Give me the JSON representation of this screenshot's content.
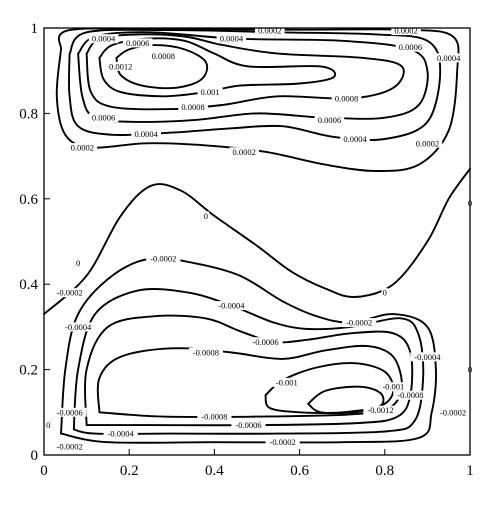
{
  "chart_data": {
    "type": "contour",
    "title": "",
    "xlabel": "",
    "ylabel": "",
    "xlim": [
      0,
      1
    ],
    "ylim": [
      0,
      1
    ],
    "grid": false,
    "x_ticks": [
      "0",
      "0.2",
      "0.4",
      "0.6",
      "0.8",
      "1"
    ],
    "y_ticks": [
      "0",
      "0.2",
      "0.4",
      "0.6",
      "0.8",
      "1"
    ],
    "line_color": "#000000",
    "contours": [
      {
        "level": "0.0012",
        "points": [
          [
            0.17,
            0.93
          ],
          [
            0.2,
            0.95
          ],
          [
            0.26,
            0.96
          ],
          [
            0.33,
            0.95
          ],
          [
            0.38,
            0.92
          ],
          [
            0.37,
            0.88
          ],
          [
            0.31,
            0.86
          ],
          [
            0.23,
            0.865
          ],
          [
            0.18,
            0.89
          ],
          [
            0.17,
            0.93
          ]
        ]
      },
      {
        "level": "0.001",
        "points": [
          [
            0.13,
            0.93
          ],
          [
            0.16,
            0.96
          ],
          [
            0.24,
            0.975
          ],
          [
            0.33,
            0.97
          ],
          [
            0.4,
            0.94
          ],
          [
            0.48,
            0.91
          ],
          [
            0.65,
            0.91
          ],
          [
            0.68,
            0.885
          ],
          [
            0.6,
            0.87
          ],
          [
            0.46,
            0.865
          ],
          [
            0.38,
            0.85
          ],
          [
            0.28,
            0.84
          ],
          [
            0.18,
            0.85
          ],
          [
            0.14,
            0.88
          ],
          [
            0.13,
            0.93
          ]
        ]
      },
      {
        "level": "0.0008",
        "points": [
          [
            0.1,
            0.94
          ],
          [
            0.13,
            0.975
          ],
          [
            0.22,
            0.985
          ],
          [
            0.33,
            0.98
          ],
          [
            0.42,
            0.96
          ],
          [
            0.55,
            0.94
          ],
          [
            0.75,
            0.93
          ],
          [
            0.84,
            0.91
          ],
          [
            0.82,
            0.86
          ],
          [
            0.72,
            0.835
          ],
          [
            0.55,
            0.84
          ],
          [
            0.42,
            0.82
          ],
          [
            0.3,
            0.81
          ],
          [
            0.16,
            0.815
          ],
          [
            0.11,
            0.85
          ],
          [
            0.1,
            0.94
          ]
        ]
      },
      {
        "level": "0.0006",
        "points": [
          [
            0.08,
            0.94
          ],
          [
            0.12,
            0.98
          ],
          [
            0.25,
            0.99
          ],
          [
            0.45,
            0.975
          ],
          [
            0.7,
            0.97
          ],
          [
            0.86,
            0.95
          ],
          [
            0.9,
            0.9
          ],
          [
            0.88,
            0.82
          ],
          [
            0.8,
            0.79
          ],
          [
            0.66,
            0.79
          ],
          [
            0.5,
            0.8
          ],
          [
            0.36,
            0.785
          ],
          [
            0.22,
            0.78
          ],
          [
            0.12,
            0.79
          ],
          [
            0.09,
            0.84
          ],
          [
            0.08,
            0.94
          ]
        ]
      },
      {
        "level": "0.0004",
        "points": [
          [
            0.06,
            0.94
          ],
          [
            0.1,
            0.99
          ],
          [
            0.3,
            0.995
          ],
          [
            0.55,
            0.99
          ],
          [
            0.78,
            0.985
          ],
          [
            0.9,
            0.97
          ],
          [
            0.93,
            0.9
          ],
          [
            0.9,
            0.78
          ],
          [
            0.8,
            0.74
          ],
          [
            0.68,
            0.745
          ],
          [
            0.56,
            0.77
          ],
          [
            0.44,
            0.765
          ],
          [
            0.3,
            0.755
          ],
          [
            0.16,
            0.75
          ],
          [
            0.08,
            0.77
          ],
          [
            0.06,
            0.84
          ],
          [
            0.06,
            0.94
          ]
        ]
      },
      {
        "level": "0.0002",
        "points": [
          [
            0.04,
            0.95
          ],
          [
            0.06,
            0.995
          ],
          [
            0.3,
            0.997
          ],
          [
            0.6,
            0.996
          ],
          [
            0.85,
            0.996
          ],
          [
            0.96,
            0.98
          ],
          [
            0.97,
            0.9
          ],
          [
            0.95,
            0.76
          ],
          [
            0.88,
            0.68
          ],
          [
            0.78,
            0.665
          ],
          [
            0.66,
            0.68
          ],
          [
            0.52,
            0.71
          ],
          [
            0.38,
            0.725
          ],
          [
            0.24,
            0.73
          ],
          [
            0.11,
            0.72
          ],
          [
            0.05,
            0.75
          ],
          [
            0.03,
            0.84
          ],
          [
            0.04,
            0.95
          ]
        ]
      },
      {
        "level": "0",
        "points": [
          [
            0.0,
            0.33
          ],
          [
            0.1,
            0.42
          ],
          [
            0.18,
            0.56
          ],
          [
            0.25,
            0.63
          ],
          [
            0.32,
            0.62
          ],
          [
            0.4,
            0.56
          ],
          [
            0.5,
            0.49
          ],
          [
            0.58,
            0.43
          ],
          [
            0.66,
            0.39
          ],
          [
            0.73,
            0.37
          ],
          [
            0.82,
            0.4
          ],
          [
            0.9,
            0.5
          ],
          [
            0.95,
            0.6
          ],
          [
            1.0,
            0.67
          ]
        ]
      },
      {
        "level": "-0.0002",
        "points": [
          [
            0.04,
            0.05
          ],
          [
            0.05,
            0.2
          ],
          [
            0.08,
            0.33
          ],
          [
            0.16,
            0.42
          ],
          [
            0.25,
            0.46
          ],
          [
            0.35,
            0.45
          ],
          [
            0.46,
            0.42
          ],
          [
            0.56,
            0.36
          ],
          [
            0.64,
            0.325
          ],
          [
            0.72,
            0.31
          ],
          [
            0.82,
            0.33
          ],
          [
            0.9,
            0.3
          ],
          [
            0.92,
            0.2
          ],
          [
            0.91,
            0.1
          ],
          [
            0.88,
            0.04
          ],
          [
            0.7,
            0.03
          ],
          [
            0.4,
            0.03
          ],
          [
            0.15,
            0.03
          ],
          [
            0.04,
            0.05
          ]
        ]
      },
      {
        "level": "-0.0004",
        "points": [
          [
            0.07,
            0.06
          ],
          [
            0.08,
            0.2
          ],
          [
            0.12,
            0.33
          ],
          [
            0.22,
            0.385
          ],
          [
            0.34,
            0.38
          ],
          [
            0.44,
            0.35
          ],
          [
            0.54,
            0.31
          ],
          [
            0.62,
            0.295
          ],
          [
            0.72,
            0.3
          ],
          [
            0.84,
            0.32
          ],
          [
            0.88,
            0.28
          ],
          [
            0.89,
            0.18
          ],
          [
            0.87,
            0.08
          ],
          [
            0.8,
            0.055
          ],
          [
            0.55,
            0.05
          ],
          [
            0.3,
            0.05
          ],
          [
            0.12,
            0.05
          ],
          [
            0.07,
            0.06
          ]
        ]
      },
      {
        "level": "-0.0006",
        "points": [
          [
            0.1,
            0.07
          ],
          [
            0.1,
            0.2
          ],
          [
            0.15,
            0.3
          ],
          [
            0.26,
            0.325
          ],
          [
            0.38,
            0.32
          ],
          [
            0.46,
            0.29
          ],
          [
            0.54,
            0.265
          ],
          [
            0.62,
            0.27
          ],
          [
            0.72,
            0.285
          ],
          [
            0.82,
            0.285
          ],
          [
            0.86,
            0.24
          ],
          [
            0.86,
            0.14
          ],
          [
            0.83,
            0.09
          ],
          [
            0.74,
            0.075
          ],
          [
            0.5,
            0.07
          ],
          [
            0.25,
            0.07
          ],
          [
            0.1,
            0.07
          ]
        ]
      },
      {
        "level": "-0.0008",
        "points": [
          [
            0.13,
            0.1
          ],
          [
            0.13,
            0.18
          ],
          [
            0.18,
            0.23
          ],
          [
            0.3,
            0.25
          ],
          [
            0.44,
            0.24
          ],
          [
            0.56,
            0.225
          ],
          [
            0.66,
            0.245
          ],
          [
            0.76,
            0.255
          ],
          [
            0.82,
            0.23
          ],
          [
            0.84,
            0.16
          ],
          [
            0.81,
            0.11
          ],
          [
            0.72,
            0.095
          ],
          [
            0.5,
            0.09
          ],
          [
            0.28,
            0.09
          ],
          [
            0.13,
            0.1
          ]
        ]
      },
      {
        "level": "-0.001",
        "points": [
          [
            0.52,
            0.14
          ],
          [
            0.56,
            0.175
          ],
          [
            0.64,
            0.205
          ],
          [
            0.73,
            0.215
          ],
          [
            0.8,
            0.195
          ],
          [
            0.82,
            0.15
          ],
          [
            0.79,
            0.115
          ],
          [
            0.7,
            0.1
          ],
          [
            0.6,
            0.1
          ],
          [
            0.53,
            0.11
          ],
          [
            0.52,
            0.14
          ]
        ]
      },
      {
        "level": "-0.0012",
        "points": [
          [
            0.62,
            0.12
          ],
          [
            0.66,
            0.15
          ],
          [
            0.74,
            0.16
          ],
          [
            0.79,
            0.145
          ],
          [
            0.79,
            0.115
          ],
          [
            0.73,
            0.1
          ],
          [
            0.65,
            0.1
          ],
          [
            0.62,
            0.12
          ]
        ]
      }
    ],
    "annotations": [
      {
        "text": "0.0004",
        "x": 0.14,
        "y": 0.975
      },
      {
        "text": "0.0002",
        "x": 0.53,
        "y": 0.994
      },
      {
        "text": "0.0002",
        "x": 0.85,
        "y": 0.994
      },
      {
        "text": "0.0006",
        "x": 0.22,
        "y": 0.965
      },
      {
        "text": "0.0004",
        "x": 0.44,
        "y": 0.975
      },
      {
        "text": "0.0006",
        "x": 0.86,
        "y": 0.955
      },
      {
        "text": "0.0004",
        "x": 0.95,
        "y": 0.93
      },
      {
        "text": "0.0008",
        "x": 0.28,
        "y": 0.935
      },
      {
        "text": "0.0012",
        "x": 0.18,
        "y": 0.91
      },
      {
        "text": "0.001",
        "x": 0.39,
        "y": 0.85
      },
      {
        "text": "0.0008",
        "x": 0.35,
        "y": 0.815
      },
      {
        "text": "0.0008",
        "x": 0.71,
        "y": 0.835
      },
      {
        "text": "0.0006",
        "x": 0.14,
        "y": 0.79
      },
      {
        "text": "0.0006",
        "x": 0.67,
        "y": 0.785
      },
      {
        "text": "0.0004",
        "x": 0.24,
        "y": 0.752
      },
      {
        "text": "0.0004",
        "x": 0.73,
        "y": 0.74
      },
      {
        "text": "0.0002",
        "x": 0.09,
        "y": 0.72
      },
      {
        "text": "0.0002",
        "x": 0.9,
        "y": 0.73
      },
      {
        "text": "0.0002",
        "x": 0.47,
        "y": 0.71
      },
      {
        "text": "0",
        "x": 0.38,
        "y": 0.56
      },
      {
        "text": "0",
        "x": 0.08,
        "y": 0.45
      },
      {
        "text": "0",
        "x": 0.8,
        "y": 0.38
      },
      {
        "text": "0",
        "x": 1.0,
        "y": 0.59
      },
      {
        "text": "0",
        "x": 1.0,
        "y": 0.2
      },
      {
        "text": "0",
        "x": 0.01,
        "y": 0.07
      },
      {
        "text": "-0.0002",
        "x": 0.28,
        "y": 0.46
      },
      {
        "text": "-0.0002",
        "x": 0.06,
        "y": 0.38
      },
      {
        "text": "-0.0002",
        "x": 0.74,
        "y": 0.31
      },
      {
        "text": "-0.0002",
        "x": 0.56,
        "y": 0.03
      },
      {
        "text": "-0.0002",
        "x": 0.96,
        "y": 0.1
      },
      {
        "text": "-0.0002",
        "x": 0.06,
        "y": 0.02
      },
      {
        "text": "-0.0004",
        "x": 0.44,
        "y": 0.35
      },
      {
        "text": "-0.0004",
        "x": 0.9,
        "y": 0.23
      },
      {
        "text": "-0.0004",
        "x": 0.18,
        "y": 0.05
      },
      {
        "text": "-0.0004",
        "x": 0.08,
        "y": 0.3
      },
      {
        "text": "-0.0006",
        "x": 0.52,
        "y": 0.265
      },
      {
        "text": "-0.0006",
        "x": 0.06,
        "y": 0.1
      },
      {
        "text": "-0.0006",
        "x": 0.48,
        "y": 0.07
      },
      {
        "text": "-0.0008",
        "x": 0.38,
        "y": 0.24
      },
      {
        "text": "-0.0008",
        "x": 0.4,
        "y": 0.09
      },
      {
        "text": "-0.0008",
        "x": 0.86,
        "y": 0.14
      },
      {
        "text": "-0.001",
        "x": 0.57,
        "y": 0.17
      },
      {
        "text": "-0.001",
        "x": 0.82,
        "y": 0.16
      },
      {
        "text": "-0.0012",
        "x": 0.79,
        "y": 0.105
      }
    ]
  }
}
